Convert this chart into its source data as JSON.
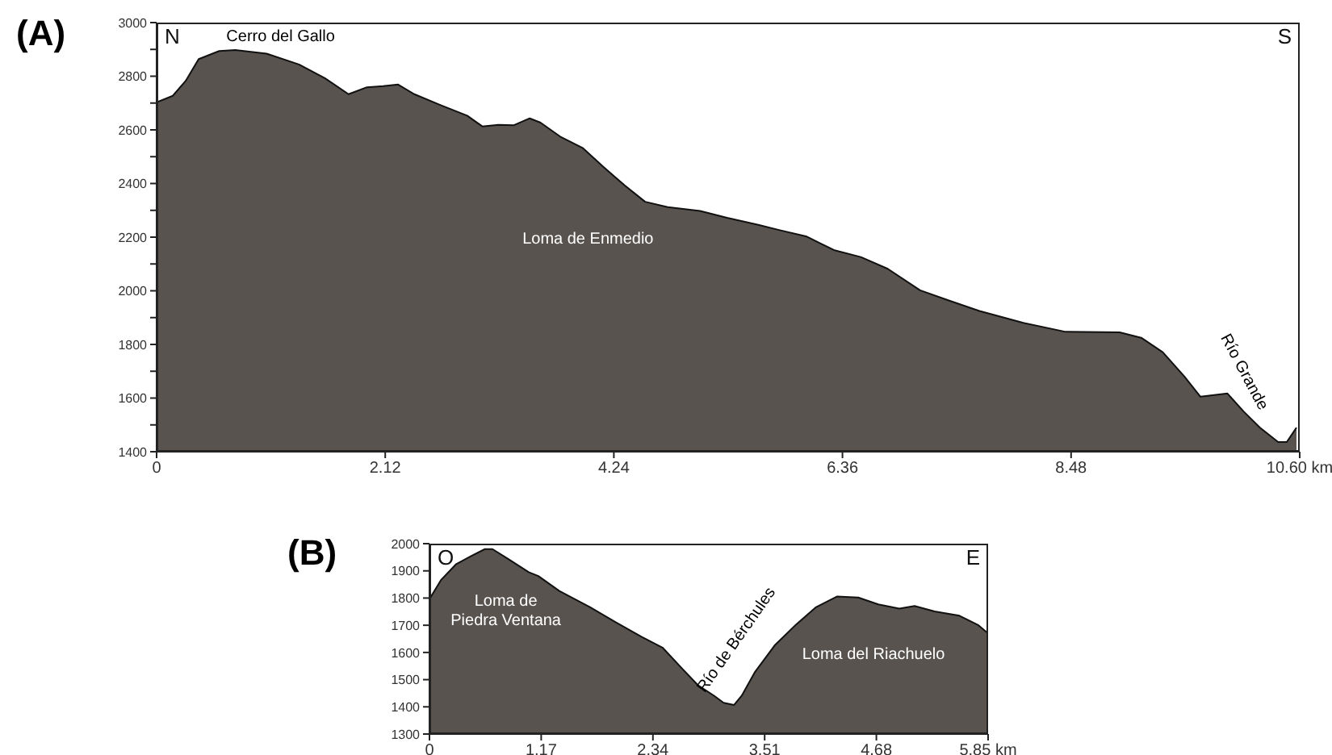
{
  "chart_data": [
    {
      "type": "area",
      "title": "(A)",
      "color": "#58534f",
      "x": [
        0,
        0.15,
        0.27,
        0.39,
        0.58,
        0.73,
        1.02,
        1.32,
        1.56,
        1.78,
        1.95,
        2.1,
        2.24,
        2.39,
        2.63,
        2.88,
        3.02,
        3.17,
        3.31,
        3.46,
        3.56,
        3.75,
        3.95,
        4.14,
        4.34,
        4.53,
        4.74,
        5.04,
        5.29,
        5.58,
        5.78,
        6.03,
        6.28,
        6.53,
        6.78,
        7.08,
        7.33,
        7.63,
        8.03,
        8.43,
        8.93,
        9.13,
        9.33,
        9.53,
        9.68,
        9.93,
        10.08,
        10.23,
        10.4,
        10.48,
        10.57
      ],
      "values": [
        2703,
        2727,
        2783,
        2864,
        2894,
        2898,
        2884,
        2844,
        2793,
        2733,
        2759,
        2763,
        2769,
        2733,
        2693,
        2653,
        2613,
        2619,
        2617,
        2643,
        2627,
        2573,
        2533,
        2463,
        2393,
        2332,
        2312,
        2298,
        2272,
        2246,
        2226,
        2202,
        2152,
        2126,
        2082,
        2002,
        1966,
        1925,
        1881,
        1847,
        1845,
        1825,
        1771,
        1681,
        1605,
        1617,
        1550,
        1490,
        1436,
        1436,
        1490
      ],
      "xlim": [
        0,
        10.6
      ],
      "xticks": [
        0,
        2.12,
        4.24,
        6.36,
        8.48,
        {
          "value": 10.6,
          "label": "10.60 km"
        }
      ],
      "ylim": [
        1400,
        3000
      ],
      "yticks": [
        1400,
        {
          "value": 1500,
          "label": null
        },
        1600,
        {
          "value": 1700,
          "label": null
        },
        1800,
        {
          "value": 1900,
          "label": null
        },
        2000,
        {
          "value": 2100,
          "label": null
        },
        2200,
        {
          "value": 2300,
          "label": null
        },
        2400,
        {
          "value": 2500,
          "label": null
        },
        2600,
        {
          "value": 2700,
          "label": null
        },
        2800,
        {
          "value": 2900,
          "label": null
        },
        3000
      ],
      "annotations": [
        "N",
        "S",
        "Cerro del Gallo",
        "Loma de Enmedio",
        "Río Grande"
      ]
    },
    {
      "type": "area",
      "title": "(B)",
      "color": "#58534f",
      "x": [
        0,
        0.12,
        0.28,
        0.44,
        0.58,
        0.66,
        0.82,
        1.04,
        1.14,
        1.36,
        1.68,
        1.95,
        2.22,
        2.44,
        2.65,
        2.81,
        2.98,
        3.08,
        3.19,
        3.27,
        3.41,
        3.62,
        3.84,
        4.05,
        4.27,
        4.49,
        4.7,
        4.92,
        5.08,
        5.29,
        5.55,
        5.75,
        5.85
      ],
      "values": [
        1796,
        1866,
        1925,
        1955,
        1980,
        1980,
        1945,
        1895,
        1881,
        1826,
        1767,
        1711,
        1658,
        1618,
        1539,
        1480,
        1441,
        1415,
        1407,
        1441,
        1529,
        1628,
        1703,
        1767,
        1806,
        1802,
        1777,
        1761,
        1771,
        1751,
        1735,
        1700,
        1670
      ],
      "xlim": [
        0,
        5.85
      ],
      "xticks": [
        0,
        1.17,
        2.34,
        3.51,
        4.68,
        {
          "value": 5.85,
          "label": "5.85 km"
        }
      ],
      "ylim": [
        1300,
        2000
      ],
      "yticks": [
        1300,
        1400,
        1500,
        1600,
        1700,
        1800,
        1900,
        2000
      ],
      "annotations": [
        "O",
        "E",
        "Loma de\nPiedra Ventana",
        "Río de Bérchules",
        "Loma del Riachuelo"
      ]
    }
  ]
}
